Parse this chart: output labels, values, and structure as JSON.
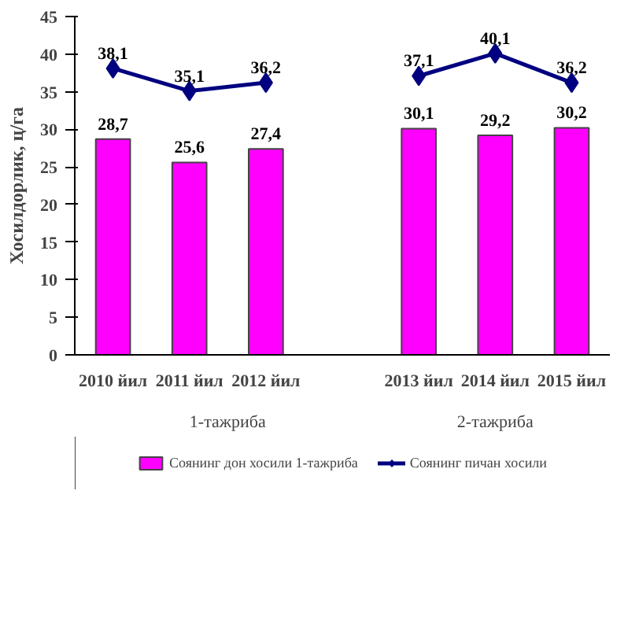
{
  "chart_data": {
    "type": "bar",
    "ylabel": "Хосилдорлик, ц/га",
    "categories": [
      "2010 йил",
      "2011 йил",
      "2012 йил",
      null,
      "2013 йил",
      "2014 йил",
      "2015 йил"
    ],
    "series": [
      {
        "name": "Соянинг дон хосили 1-тажриба",
        "color": "#ff00ff",
        "values": [
          28.7,
          25.6,
          27.4,
          null,
          30.1,
          29.2,
          30.2
        ],
        "value_labels": [
          "28,7",
          "25,6",
          "27,4",
          null,
          "30,1",
          "29,2",
          "30,2"
        ]
      },
      {
        "name": "Соянинг пичан хосили",
        "type": "line",
        "color": "#000080",
        "values": [
          38.1,
          35.1,
          36.2,
          null,
          37.1,
          40.1,
          36.2
        ],
        "value_labels": [
          "38,1",
          "35,1",
          "36,2",
          null,
          "37,1",
          "40,1",
          "36,2"
        ],
        "marker": "diamond"
      }
    ],
    "annotations": [
      "1-тажриба",
      "2-тажриба"
    ],
    "ylim": [
      0,
      45
    ],
    "yticks": [
      0,
      5,
      10,
      15,
      20,
      25,
      30,
      35,
      40,
      45
    ],
    "grid": false,
    "legend": "bottom"
  }
}
